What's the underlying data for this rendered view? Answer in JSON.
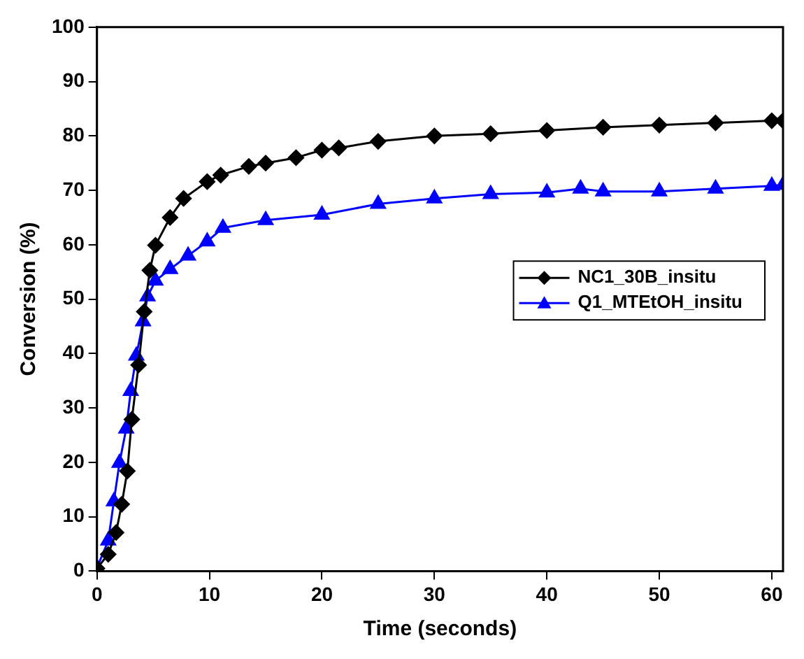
{
  "chart_data": {
    "type": "line",
    "xlabel": "Time (seconds)",
    "ylabel": "Conversion (%)",
    "xlim": [
      0,
      61
    ],
    "ylim": [
      0,
      100
    ],
    "xticks": [
      0,
      10,
      20,
      30,
      40,
      50,
      60
    ],
    "yticks": [
      0,
      10,
      20,
      30,
      40,
      50,
      60,
      70,
      80,
      90,
      100
    ],
    "grid": false,
    "legend": "right",
    "line_style": "solid",
    "series": [
      {
        "name": "NC1_30B_insitu",
        "color": "#000000",
        "marker": "diamond",
        "x": [
          0,
          1,
          1.7,
          2.2,
          2.7,
          3.1,
          3.7,
          4.2,
          4.7,
          5.2,
          6.5,
          7.7,
          9.8,
          11,
          13.5,
          15,
          17.7,
          20,
          21.5,
          25,
          30,
          35,
          40,
          45,
          50,
          55,
          60,
          61
        ],
        "values": [
          0.5,
          3.1,
          7.1,
          12.3,
          18.4,
          27.9,
          37.9,
          47.7,
          55.3,
          59.9,
          65,
          68.5,
          71.6,
          72.8,
          74.4,
          75,
          76,
          77.4,
          77.8,
          79,
          80,
          80.4,
          81,
          81.6,
          82,
          82.4,
          82.8,
          82.8
        ]
      },
      {
        "name": "Q1_MTEtOH_insitu",
        "color": "#0000ff",
        "marker": "triangle",
        "x": [
          0,
          1,
          1.5,
          2,
          2.6,
          3,
          3.5,
          4.1,
          4.5,
          5.2,
          6.5,
          8.1,
          9.8,
          11.2,
          15,
          20,
          25,
          30,
          35,
          40,
          43,
          45,
          50,
          55,
          60,
          61
        ],
        "values": [
          0.6,
          5.6,
          12.8,
          19.9,
          26.2,
          33.1,
          39.6,
          45.9,
          50.5,
          53.4,
          55.5,
          58,
          60.6,
          63.1,
          64.5,
          65.5,
          67.5,
          68.5,
          69.3,
          69.6,
          70.3,
          69.8,
          69.8,
          70.3,
          70.8,
          71
        ]
      }
    ]
  }
}
